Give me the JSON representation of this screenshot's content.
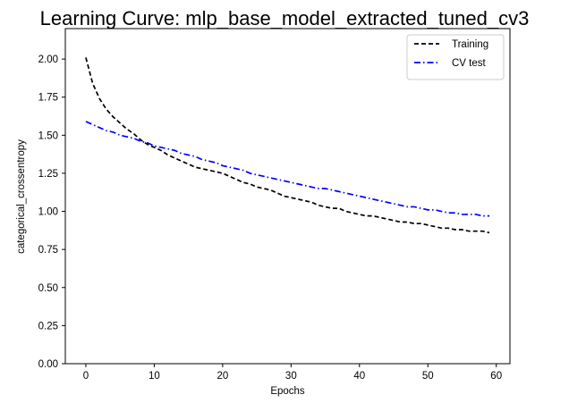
{
  "chart_data": {
    "type": "line",
    "title": "Learning Curve: mlp_base_model_extracted_tuned_cv3",
    "xlabel": "Epochs",
    "ylabel": "categorical_crossentropy",
    "xlim": [
      -3,
      62
    ],
    "ylim": [
      0.0,
      2.2
    ],
    "xticks": [
      0,
      10,
      20,
      30,
      40,
      50,
      60
    ],
    "yticks": [
      0.0,
      0.25,
      0.5,
      0.75,
      1.0,
      1.25,
      1.5,
      1.75,
      2.0
    ],
    "ytick_labels": [
      "0.00",
      "0.25",
      "0.50",
      "0.75",
      "1.00",
      "1.25",
      "1.50",
      "1.75",
      "2.00"
    ],
    "grid": false,
    "legend_position": "top-right",
    "x": [
      0,
      1,
      2,
      3,
      4,
      5,
      6,
      7,
      8,
      9,
      10,
      11,
      12,
      13,
      14,
      15,
      16,
      17,
      18,
      19,
      20,
      21,
      22,
      23,
      24,
      25,
      26,
      27,
      28,
      29,
      30,
      31,
      32,
      33,
      34,
      35,
      36,
      37,
      38,
      39,
      40,
      41,
      42,
      43,
      44,
      45,
      46,
      47,
      48,
      49,
      50,
      51,
      52,
      53,
      54,
      55,
      56,
      57,
      58,
      59
    ],
    "series": [
      {
        "name": "Training",
        "color": "#000000",
        "style": "dashed",
        "values": [
          2.01,
          1.84,
          1.74,
          1.67,
          1.62,
          1.58,
          1.54,
          1.51,
          1.47,
          1.44,
          1.42,
          1.4,
          1.37,
          1.35,
          1.33,
          1.31,
          1.29,
          1.28,
          1.27,
          1.26,
          1.25,
          1.23,
          1.21,
          1.19,
          1.18,
          1.16,
          1.15,
          1.14,
          1.12,
          1.1,
          1.09,
          1.08,
          1.07,
          1.06,
          1.04,
          1.03,
          1.02,
          1.02,
          1.0,
          0.99,
          0.98,
          0.97,
          0.97,
          0.96,
          0.95,
          0.94,
          0.93,
          0.93,
          0.92,
          0.92,
          0.91,
          0.9,
          0.89,
          0.89,
          0.88,
          0.88,
          0.87,
          0.87,
          0.87,
          0.86
        ]
      },
      {
        "name": "CV test",
        "color": "#0000ff",
        "style": "dashdot",
        "values": [
          1.59,
          1.57,
          1.55,
          1.53,
          1.52,
          1.5,
          1.49,
          1.48,
          1.46,
          1.45,
          1.43,
          1.42,
          1.41,
          1.4,
          1.38,
          1.37,
          1.36,
          1.34,
          1.33,
          1.32,
          1.3,
          1.29,
          1.28,
          1.27,
          1.25,
          1.24,
          1.23,
          1.22,
          1.21,
          1.2,
          1.19,
          1.18,
          1.17,
          1.16,
          1.15,
          1.15,
          1.14,
          1.13,
          1.12,
          1.11,
          1.1,
          1.09,
          1.08,
          1.07,
          1.06,
          1.05,
          1.04,
          1.03,
          1.03,
          1.02,
          1.01,
          1.01,
          1.0,
          0.99,
          0.99,
          0.98,
          0.98,
          0.98,
          0.97,
          0.97
        ]
      }
    ]
  }
}
